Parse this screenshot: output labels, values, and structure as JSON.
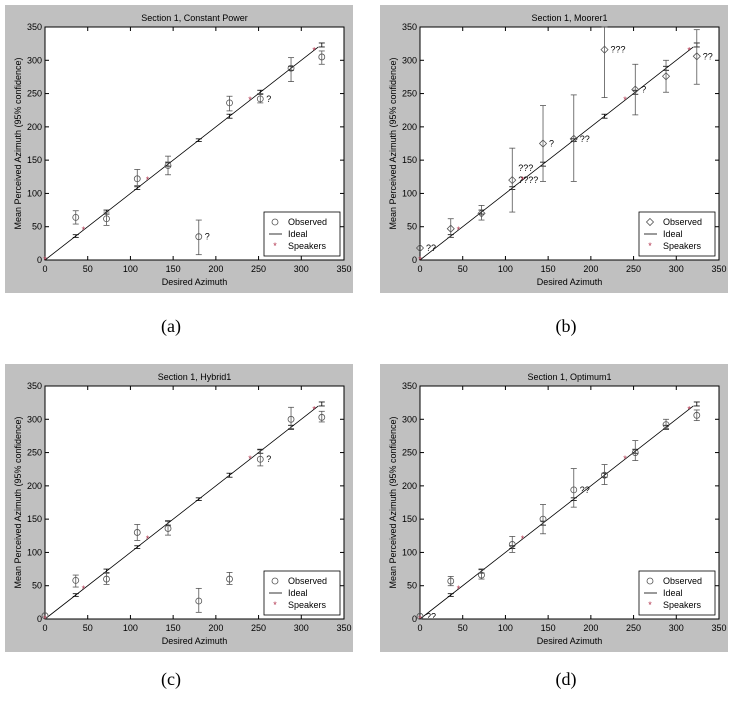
{
  "chart_data": [
    {
      "type": "scatter",
      "title": "Section 1, Constant Power",
      "xlabel": "Desired Azimuth",
      "ylabel": "Mean Perceived Azimuth (95% confidence)",
      "xlim": [
        0,
        350
      ],
      "ylim": [
        0,
        350
      ],
      "xticks": [
        "0",
        "50",
        "100",
        "150",
        "200",
        "250",
        "300",
        "350"
      ],
      "yticks": [
        "0",
        "50",
        "100",
        "150",
        "200",
        "250",
        "300",
        "350"
      ],
      "caption": "(a)",
      "legend": [
        "Observed",
        "Ideal",
        "Speakers"
      ],
      "legend_position": "bottom-right",
      "ideal": [
        [
          0,
          0
        ],
        [
          320,
          320
        ]
      ],
      "speakers": [
        0,
        45,
        120,
        240,
        315
      ],
      "observed": [
        {
          "x": 36,
          "y": 64,
          "lo": 54,
          "hi": 74
        },
        {
          "x": 72,
          "y": 62,
          "lo": 52,
          "hi": 72
        },
        {
          "x": 108,
          "y": 122,
          "lo": 112,
          "hi": 136
        },
        {
          "x": 144,
          "y": 142,
          "lo": 128,
          "hi": 156
        },
        {
          "x": 180,
          "y": 35,
          "lo": 8,
          "hi": 60,
          "note": "?"
        },
        {
          "x": 216,
          "y": 236,
          "lo": 224,
          "hi": 246
        },
        {
          "x": 252,
          "y": 242,
          "lo": 236,
          "hi": 250,
          "note": "?"
        },
        {
          "x": 288,
          "y": 288,
          "lo": 268,
          "hi": 304
        },
        {
          "x": 324,
          "y": 305,
          "lo": 294,
          "hi": 314
        }
      ],
      "ideal_ci": [
        {
          "x": 36,
          "lo": 34,
          "hi": 38
        },
        {
          "x": 72,
          "lo": 69,
          "hi": 75
        },
        {
          "x": 108,
          "lo": 106,
          "hi": 110
        },
        {
          "x": 144,
          "lo": 141,
          "hi": 147
        },
        {
          "x": 180,
          "lo": 178,
          "hi": 182
        },
        {
          "x": 216,
          "lo": 213,
          "hi": 219
        },
        {
          "x": 252,
          "lo": 249,
          "hi": 255
        },
        {
          "x": 288,
          "lo": 285,
          "hi": 291
        },
        {
          "x": 324,
          "lo": 320,
          "hi": 326
        }
      ]
    },
    {
      "type": "scatter",
      "title": "Section 1, Moorer1",
      "xlabel": "Desired Azimuth",
      "ylabel": "Mean Perceived Azimuth (95% confidence)",
      "xlim": [
        0,
        350
      ],
      "ylim": [
        0,
        350
      ],
      "xticks": [
        "0",
        "50",
        "100",
        "150",
        "200",
        "250",
        "300",
        "350"
      ],
      "yticks": [
        "0",
        "50",
        "100",
        "150",
        "200",
        "250",
        "300",
        "350"
      ],
      "caption": "(b)",
      "legend": [
        "Observed",
        "Ideal",
        "Speakers"
      ],
      "legend_position": "bottom-right",
      "ideal": [
        [
          0,
          0
        ],
        [
          320,
          320
        ]
      ],
      "speakers": [
        0,
        45,
        120,
        240,
        315
      ],
      "observed": [
        {
          "x": 0,
          "y": 18,
          "note": "??"
        },
        {
          "x": 36,
          "y": 47,
          "lo": 34,
          "hi": 62
        },
        {
          "x": 72,
          "y": 70,
          "lo": 60,
          "hi": 82
        },
        {
          "x": 108,
          "y": 120,
          "lo": 72,
          "hi": 168,
          "note": "????"
        },
        {
          "x": 144,
          "y": 175,
          "lo": 118,
          "hi": 232,
          "note": "?"
        },
        {
          "x": 180,
          "y": 182,
          "lo": 118,
          "hi": 248,
          "note": "??"
        },
        {
          "x": 216,
          "y": 316,
          "lo": 244,
          "hi": 350,
          "note": "???"
        },
        {
          "x": 252,
          "y": 256,
          "lo": 218,
          "hi": 294,
          "note": "?"
        },
        {
          "x": 288,
          "y": 276,
          "lo": 252,
          "hi": 300
        },
        {
          "x": 324,
          "y": 306,
          "lo": 264,
          "hi": 346,
          "note": "??"
        }
      ],
      "extra_notes": [
        {
          "x": 108,
          "y": 120,
          "text": "???"
        }
      ],
      "ideal_ci": [
        {
          "x": 36,
          "lo": 34,
          "hi": 38
        },
        {
          "x": 72,
          "lo": 69,
          "hi": 75
        },
        {
          "x": 108,
          "lo": 106,
          "hi": 110
        },
        {
          "x": 144,
          "lo": 141,
          "hi": 147
        },
        {
          "x": 180,
          "lo": 178,
          "hi": 182
        },
        {
          "x": 216,
          "lo": 213,
          "hi": 219
        },
        {
          "x": 252,
          "lo": 249,
          "hi": 255
        },
        {
          "x": 288,
          "lo": 285,
          "hi": 291
        },
        {
          "x": 324,
          "lo": 320,
          "hi": 326
        }
      ]
    },
    {
      "type": "scatter",
      "title": "Section 1, Hybrid1",
      "xlabel": "Desired Azimuth",
      "ylabel": "Mean Perceived Azimuth (95% confidence)",
      "xlim": [
        0,
        350
      ],
      "ylim": [
        0,
        350
      ],
      "xticks": [
        "0",
        "50",
        "100",
        "150",
        "200",
        "250",
        "300",
        "350"
      ],
      "yticks": [
        "0",
        "50",
        "100",
        "150",
        "200",
        "250",
        "300",
        "350"
      ],
      "caption": "(c)",
      "legend": [
        "Observed",
        "Ideal",
        "Speakers"
      ],
      "legend_position": "bottom-right",
      "ideal": [
        [
          0,
          0
        ],
        [
          320,
          320
        ]
      ],
      "speakers": [
        0,
        45,
        120,
        240,
        315
      ],
      "observed": [
        {
          "x": 0,
          "y": 5
        },
        {
          "x": 36,
          "y": 58,
          "lo": 48,
          "hi": 66
        },
        {
          "x": 72,
          "y": 60,
          "lo": 52,
          "hi": 70
        },
        {
          "x": 108,
          "y": 130,
          "lo": 118,
          "hi": 142
        },
        {
          "x": 144,
          "y": 136,
          "lo": 126,
          "hi": 148
        },
        {
          "x": 180,
          "y": 27,
          "lo": 10,
          "hi": 46
        },
        {
          "x": 216,
          "y": 60,
          "lo": 52,
          "hi": 70
        },
        {
          "x": 252,
          "y": 240,
          "lo": 230,
          "hi": 254,
          "note": "?"
        },
        {
          "x": 288,
          "y": 300,
          "lo": 286,
          "hi": 318
        },
        {
          "x": 324,
          "y": 303,
          "lo": 296,
          "hi": 312
        }
      ],
      "ideal_ci": [
        {
          "x": 36,
          "lo": 34,
          "hi": 38
        },
        {
          "x": 72,
          "lo": 69,
          "hi": 75
        },
        {
          "x": 108,
          "lo": 106,
          "hi": 110
        },
        {
          "x": 144,
          "lo": 141,
          "hi": 147
        },
        {
          "x": 180,
          "lo": 178,
          "hi": 182
        },
        {
          "x": 216,
          "lo": 213,
          "hi": 219
        },
        {
          "x": 252,
          "lo": 249,
          "hi": 255
        },
        {
          "x": 288,
          "lo": 285,
          "hi": 291
        },
        {
          "x": 324,
          "lo": 320,
          "hi": 326
        }
      ]
    },
    {
      "type": "scatter",
      "title": "Section 1, Optimum1",
      "xlabel": "Desired Azimuth",
      "ylabel": "Mean Perceived Azimuth (95% confidence)",
      "xlim": [
        0,
        350
      ],
      "ylim": [
        0,
        350
      ],
      "xticks": [
        "0",
        "50",
        "100",
        "150",
        "200",
        "250",
        "300",
        "350"
      ],
      "yticks": [
        "0",
        "50",
        "100",
        "150",
        "200",
        "250",
        "300",
        "350"
      ],
      "caption": "(d)",
      "legend": [
        "Observed",
        "Ideal",
        "Speakers"
      ],
      "legend_position": "bottom-right",
      "ideal": [
        [
          0,
          0
        ],
        [
          320,
          320
        ]
      ],
      "speakers": [
        0,
        45,
        120,
        240,
        315
      ],
      "observed": [
        {
          "x": 0,
          "y": 4,
          "note": "??"
        },
        {
          "x": 36,
          "y": 57,
          "lo": 50,
          "hi": 64
        },
        {
          "x": 72,
          "y": 66,
          "lo": 60,
          "hi": 74
        },
        {
          "x": 108,
          "y": 112,
          "lo": 100,
          "hi": 124
        },
        {
          "x": 144,
          "y": 150,
          "lo": 128,
          "hi": 172
        },
        {
          "x": 180,
          "y": 194,
          "lo": 168,
          "hi": 226,
          "note": "??"
        },
        {
          "x": 216,
          "y": 216,
          "lo": 202,
          "hi": 232
        },
        {
          "x": 252,
          "y": 250,
          "lo": 238,
          "hi": 268
        },
        {
          "x": 288,
          "y": 292,
          "lo": 286,
          "hi": 300
        },
        {
          "x": 324,
          "y": 306,
          "lo": 298,
          "hi": 314
        }
      ],
      "ideal_ci": [
        {
          "x": 36,
          "lo": 34,
          "hi": 38
        },
        {
          "x": 72,
          "lo": 69,
          "hi": 75
        },
        {
          "x": 108,
          "lo": 106,
          "hi": 110
        },
        {
          "x": 144,
          "lo": 141,
          "hi": 147
        },
        {
          "x": 180,
          "lo": 178,
          "hi": 182
        },
        {
          "x": 216,
          "lo": 213,
          "hi": 219
        },
        {
          "x": 252,
          "lo": 249,
          "hi": 255
        },
        {
          "x": 288,
          "lo": 285,
          "hi": 291
        },
        {
          "x": 324,
          "lo": 320,
          "hi": 326
        }
      ]
    }
  ],
  "colors": {
    "figure_bg": "#c0c0c0",
    "axes_bg": "#ffffff",
    "ink": "#000000",
    "speaker": "#b0304a"
  },
  "captions": [
    "(a)",
    "(b)",
    "(c)",
    "(d)"
  ]
}
